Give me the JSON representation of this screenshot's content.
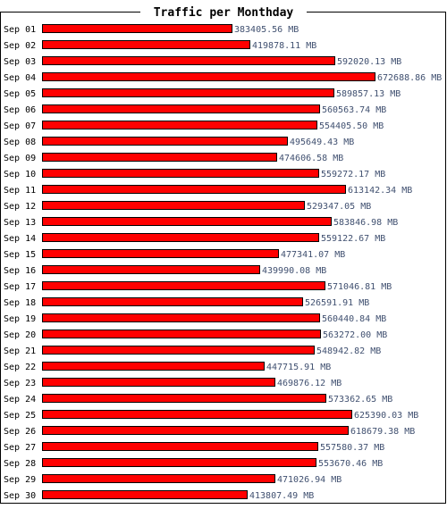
{
  "chart_data": {
    "type": "bar",
    "orientation": "horizontal",
    "title": "Traffic per Monthday",
    "unit": "MB",
    "categories": [
      "Sep 01",
      "Sep 02",
      "Sep 03",
      "Sep 04",
      "Sep 05",
      "Sep 06",
      "Sep 07",
      "Sep 08",
      "Sep 09",
      "Sep 10",
      "Sep 11",
      "Sep 12",
      "Sep 13",
      "Sep 14",
      "Sep 15",
      "Sep 16",
      "Sep 17",
      "Sep 18",
      "Sep 19",
      "Sep 20",
      "Sep 21",
      "Sep 22",
      "Sep 23",
      "Sep 24",
      "Sep 25",
      "Sep 26",
      "Sep 27",
      "Sep 28",
      "Sep 29",
      "Sep 30"
    ],
    "values": [
      383405.56,
      419878.11,
      592020.13,
      672688.86,
      589857.13,
      560563.74,
      554405.5,
      495649.43,
      474606.58,
      559272.17,
      613142.34,
      529347.05,
      583846.98,
      559122.67,
      477341.07,
      439990.08,
      571046.81,
      526591.91,
      560440.84,
      563272.0,
      548942.82,
      447715.91,
      469876.12,
      573362.65,
      625390.03,
      618679.38,
      557580.37,
      553670.46,
      471026.94,
      413807.49
    ],
    "value_labels": [
      "383405.56 MB",
      "419878.11 MB",
      "592020.13 MB",
      "672688.86 MB",
      "589857.13 MB",
      "560563.74 MB",
      "554405.50 MB",
      "495649.43 MB",
      "474606.58 MB",
      "559272.17 MB",
      "613142.34 MB",
      "529347.05 MB",
      "583846.98 MB",
      "559122.67 MB",
      "477341.07 MB",
      "439990.08 MB",
      "571046.81 MB",
      "526591.91 MB",
      "560440.84 MB",
      "563272.00 MB",
      "548942.82 MB",
      "447715.91 MB",
      "469876.12 MB",
      "573362.65 MB",
      "625390.03 MB",
      "618679.38 MB",
      "557580.37 MB",
      "553670.46 MB",
      "471026.94 MB",
      "413807.49 MB"
    ],
    "xlim": [
      0,
      672688.86
    ],
    "grid": false,
    "bar_color": "#ff0000",
    "bar_border_color": "#000000",
    "label_color": "#405070"
  }
}
